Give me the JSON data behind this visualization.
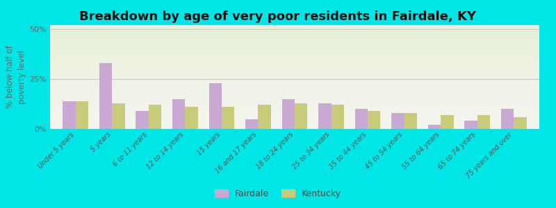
{
  "title": "Breakdown by age of very poor residents in Fairdale, KY",
  "ylabel": "% below half of\npoverty level",
  "categories": [
    "Under 5 years",
    "5 years",
    "6 to 11 years",
    "12 to 14 years",
    "15 years",
    "16 and 17 years",
    "18 to 24 years",
    "25 to 34 years",
    "35 to 44 years",
    "45 to 54 years",
    "55 to 64 years",
    "65 to 74 years",
    "75 years and over"
  ],
  "fairdale": [
    14,
    33,
    9,
    15,
    23,
    5,
    15,
    13,
    10,
    8,
    2,
    4,
    10
  ],
  "kentucky": [
    14,
    13,
    12,
    11,
    11,
    12,
    13,
    12,
    9,
    8,
    7,
    7,
    6
  ],
  "fairdale_color": "#c9a8d4",
  "kentucky_color": "#c8cc7a",
  "outer_bg": "#00e5e5",
  "ylim": [
    0,
    52
  ],
  "yticks": [
    0,
    25,
    50
  ],
  "ytick_labels": [
    "0%",
    "25%",
    "50%"
  ],
  "bar_width": 0.35,
  "title_fontsize": 13,
  "tick_fontsize": 7,
  "ylabel_fontsize": 8.5,
  "legend_fontsize": 9
}
